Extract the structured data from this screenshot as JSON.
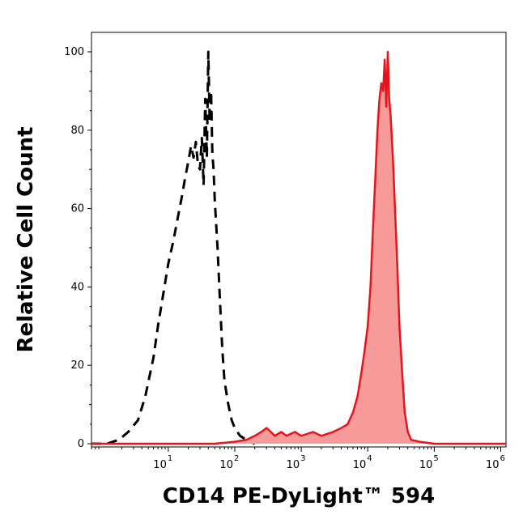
{
  "chart_data": {
    "type": "area",
    "xlabel": "CD14 PE-DyLight™ 594",
    "ylabel": "Relative Cell Count",
    "x_scale": "log",
    "xlim": [
      0.7,
      1200000
    ],
    "ylim": [
      0,
      100
    ],
    "y_ticks": [
      "0",
      "20",
      "40",
      "60",
      "80",
      "100"
    ],
    "x_ticks": [
      {
        "base": "10",
        "exp": "1"
      },
      {
        "base": "10",
        "exp": "2"
      },
      {
        "base": "10",
        "exp": "3"
      },
      {
        "base": "10",
        "exp": "4"
      },
      {
        "base": "10",
        "exp": "5"
      },
      {
        "base": "10",
        "exp": "6"
      }
    ],
    "colors": {
      "stained_line": "#e8141b",
      "stained_fill": "#f79a9a",
      "control_line": "#000000"
    },
    "series": [
      {
        "style": "dashed-black-unfilled",
        "x": [
          0.7,
          1.2,
          1.8,
          2.5,
          3.5,
          4.5,
          6,
          7,
          8,
          10,
          12,
          14,
          16,
          18,
          20,
          22,
          24,
          26,
          28,
          30,
          32,
          34,
          36,
          38,
          40,
          42,
          44,
          46,
          48,
          50,
          55,
          60,
          65,
          70,
          80,
          90,
          100,
          120,
          150,
          200
        ],
        "y": [
          0,
          0,
          1,
          3,
          6,
          12,
          22,
          30,
          36,
          46,
          52,
          58,
          63,
          68,
          72,
          76,
          73,
          77,
          71,
          70,
          78,
          66,
          88,
          73,
          100,
          82,
          90,
          74,
          70,
          62,
          50,
          36,
          24,
          16,
          10,
          6,
          4,
          2,
          1,
          0
        ]
      },
      {
        "style": "red-filled",
        "x": [
          0.7,
          20,
          50,
          100,
          150,
          200,
          250,
          300,
          350,
          400,
          500,
          600,
          800,
          1000,
          1500,
          2000,
          3000,
          4000,
          5000,
          6000,
          7000,
          8000,
          9000,
          10000,
          11000,
          12000,
          13000,
          14000,
          15000,
          16000,
          17000,
          18000,
          19000,
          20000,
          21000,
          22000,
          24000,
          26000,
          28000,
          30000,
          33000,
          36000,
          40000,
          45000,
          60000,
          100000,
          300000,
          1200000
        ],
        "y": [
          0,
          0,
          0,
          0.5,
          1,
          2,
          3,
          4,
          3,
          2,
          3,
          2,
          3,
          2,
          3,
          2,
          3,
          4,
          5,
          8,
          12,
          18,
          24,
          30,
          40,
          55,
          68,
          80,
          88,
          92,
          90,
          98,
          86,
          100,
          88,
          84,
          72,
          58,
          44,
          30,
          18,
          8,
          3,
          1,
          0.5,
          0,
          0,
          0
        ]
      }
    ]
  }
}
